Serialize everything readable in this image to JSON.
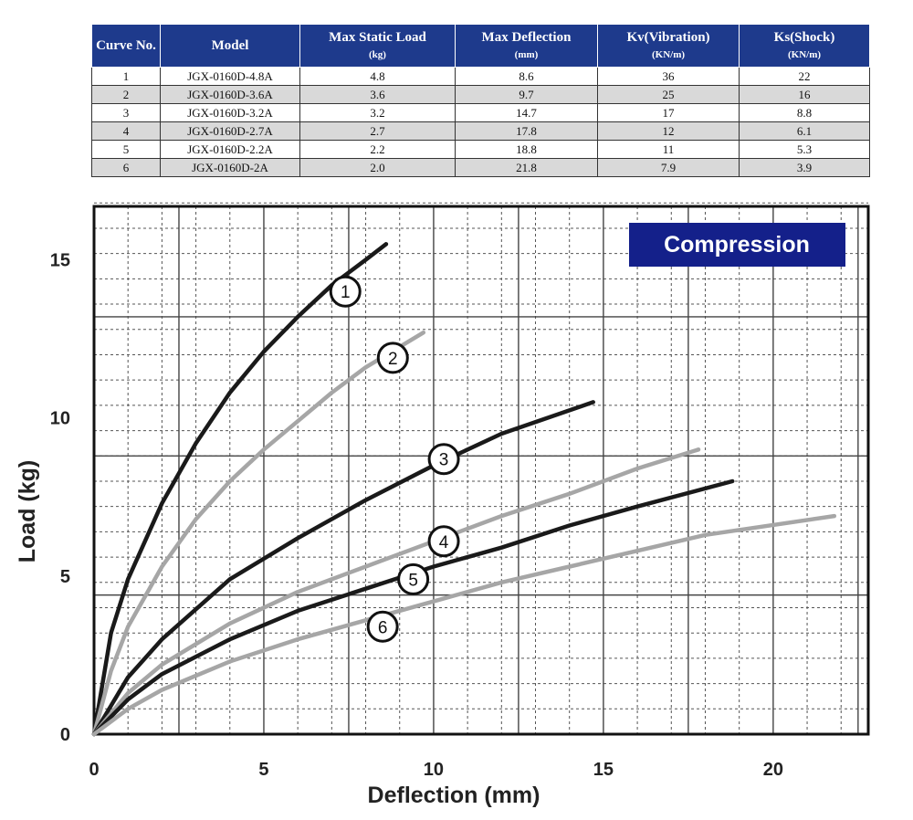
{
  "table": {
    "headers": [
      {
        "label": "Curve No.",
        "unit": ""
      },
      {
        "label": "Model",
        "unit": ""
      },
      {
        "label": "Max Static Load",
        "unit": "(kg)"
      },
      {
        "label": "Max Deflection",
        "unit": "(mm)"
      },
      {
        "label": "Kv(Vibration)",
        "unit": "(KN/m)"
      },
      {
        "label": "Ks(Shock)",
        "unit": "(KN/m)"
      }
    ],
    "rows": [
      [
        "1",
        "JGX-0160D-4.8A",
        "4.8",
        "8.6",
        "36",
        "22"
      ],
      [
        "2",
        "JGX-0160D-3.6A",
        "3.6",
        "9.7",
        "25",
        "16"
      ],
      [
        "3",
        "JGX-0160D-3.2A",
        "3.2",
        "14.7",
        "17",
        "8.8"
      ],
      [
        "4",
        "JGX-0160D-2.7A",
        "2.7",
        "17.8",
        "12",
        "6.1"
      ],
      [
        "5",
        "JGX-0160D-2.2A",
        "2.2",
        "18.8",
        "11",
        "5.3"
      ],
      [
        "6",
        "JGX-0160D-2A",
        "2.0",
        "21.8",
        "7.9",
        "3.9"
      ]
    ]
  },
  "chart_data": {
    "type": "line",
    "title": "",
    "badge": "Compression",
    "xlabel": "Deflection (mm)",
    "ylabel": "Load (kg)",
    "xlim": [
      0,
      22.8
    ],
    "ylim": [
      0,
      17.5
    ],
    "xticks": [
      0,
      5,
      10,
      15,
      20
    ],
    "yticks": [
      0,
      5,
      10,
      15
    ],
    "grid": true,
    "series": [
      {
        "name": "1",
        "color": "#1a1a1a",
        "label_at": [
          7.4,
          14.0
        ],
        "points": [
          [
            0,
            0
          ],
          [
            0.5,
            3.2
          ],
          [
            1,
            4.9
          ],
          [
            2,
            7.3
          ],
          [
            3,
            9.2
          ],
          [
            4,
            10.8
          ],
          [
            5,
            12.1
          ],
          [
            6,
            13.2
          ],
          [
            7,
            14.2
          ],
          [
            8,
            15.0
          ],
          [
            8.6,
            15.5
          ]
        ]
      },
      {
        "name": "2",
        "color": "#a6a6a6",
        "label_at": [
          8.8,
          11.9
        ],
        "points": [
          [
            0,
            0
          ],
          [
            0.5,
            2.0
          ],
          [
            1,
            3.4
          ],
          [
            2,
            5.3
          ],
          [
            3,
            6.8
          ],
          [
            4,
            8.0
          ],
          [
            5,
            9.0
          ],
          [
            6,
            9.9
          ],
          [
            7,
            10.8
          ],
          [
            8,
            11.6
          ],
          [
            9.7,
            12.7
          ]
        ]
      },
      {
        "name": "3",
        "color": "#1a1a1a",
        "label_at": [
          10.3,
          8.7
        ],
        "points": [
          [
            0,
            0
          ],
          [
            1,
            1.8
          ],
          [
            2,
            3.0
          ],
          [
            4,
            4.9
          ],
          [
            6,
            6.2
          ],
          [
            8,
            7.4
          ],
          [
            10,
            8.5
          ],
          [
            12,
            9.5
          ],
          [
            14.7,
            10.5
          ]
        ]
      },
      {
        "name": "4",
        "color": "#a6a6a6",
        "label_at": [
          10.3,
          6.1
        ],
        "points": [
          [
            0,
            0
          ],
          [
            1,
            1.3
          ],
          [
            2,
            2.2
          ],
          [
            4,
            3.5
          ],
          [
            6,
            4.5
          ],
          [
            8,
            5.3
          ],
          [
            10,
            6.1
          ],
          [
            12,
            6.9
          ],
          [
            14,
            7.6
          ],
          [
            16,
            8.4
          ],
          [
            17.8,
            9.0
          ]
        ]
      },
      {
        "name": "5",
        "color": "#1a1a1a",
        "label_at": [
          9.4,
          4.9
        ],
        "points": [
          [
            0,
            0
          ],
          [
            1,
            1.1
          ],
          [
            2,
            1.9
          ],
          [
            4,
            3.0
          ],
          [
            6,
            3.9
          ],
          [
            8,
            4.6
          ],
          [
            10,
            5.3
          ],
          [
            12,
            5.9
          ],
          [
            14,
            6.6
          ],
          [
            16,
            7.2
          ],
          [
            18.8,
            8.0
          ]
        ]
      },
      {
        "name": "6",
        "color": "#a6a6a6",
        "label_at": [
          8.5,
          3.4
        ],
        "points": [
          [
            0,
            0
          ],
          [
            1,
            0.8
          ],
          [
            2,
            1.4
          ],
          [
            4,
            2.3
          ],
          [
            6,
            3.0
          ],
          [
            8,
            3.6
          ],
          [
            10,
            4.2
          ],
          [
            12,
            4.8
          ],
          [
            14,
            5.3
          ],
          [
            16,
            5.8
          ],
          [
            18,
            6.3
          ],
          [
            21.8,
            6.9
          ]
        ]
      }
    ]
  }
}
